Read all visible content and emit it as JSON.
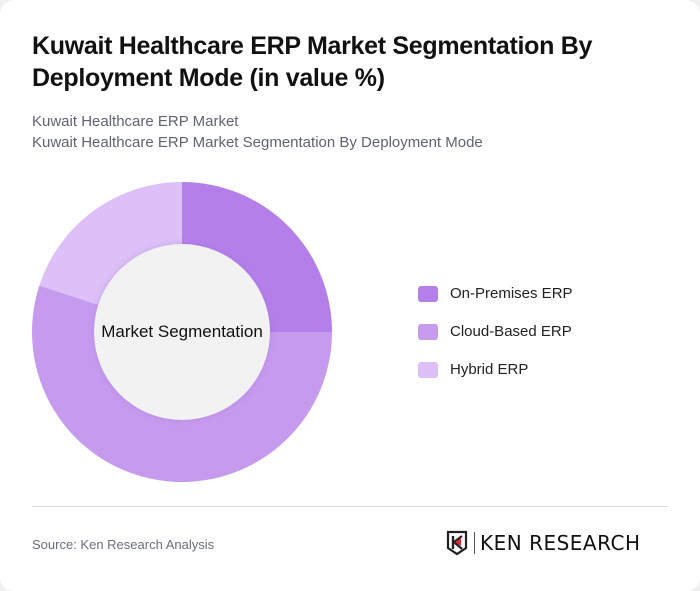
{
  "header": {
    "title": "Kuwait Healthcare ERP Market Segmentation By Deployment Mode (in value %)",
    "subtitle_line1": "Kuwait Healthcare ERP Market",
    "subtitle_line2": "Kuwait Healthcare ERP Market Segmentation By Deployment Mode"
  },
  "chart": {
    "center_label": "Market Segmentation",
    "legend": [
      {
        "label": "On-Premises ERP",
        "color": "#b57fe9"
      },
      {
        "label": "Cloud-Based ERP",
        "color": "#c69bee"
      },
      {
        "label": "Hybrid ERP",
        "color": "#dcc0f7"
      }
    ]
  },
  "footer": {
    "source": "Source: Ken Research Analysis",
    "logo_text": "KEN RESEARCH"
  },
  "chart_data": {
    "type": "pie",
    "subtype": "donut",
    "title": "Kuwait Healthcare ERP Market Segmentation By Deployment Mode (in value %)",
    "center_label": "Market Segmentation",
    "categories": [
      "On-Premises ERP",
      "Cloud-Based ERP",
      "Hybrid ERP"
    ],
    "values": [
      25,
      55,
      20
    ],
    "colors": [
      "#b57fe9",
      "#c69bee",
      "#dcc0f7"
    ],
    "legend_position": "right",
    "start_angle": "top (12 o'clock), clockwise"
  }
}
